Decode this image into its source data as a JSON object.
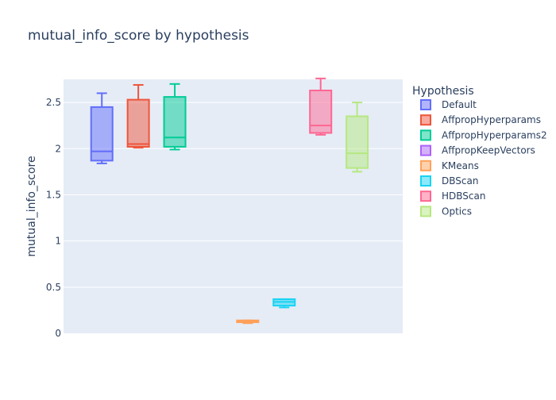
{
  "chart_data": {
    "type": "box",
    "title": "mutual_info_score by hypothesis",
    "xlabel": "",
    "ylabel": "mutual_info_score",
    "ylim": [
      0,
      2.75
    ],
    "yticks": [
      0,
      0.5,
      1,
      1.5,
      2,
      2.5
    ],
    "ytick_labels": [
      "0",
      "0.5",
      "1",
      "1.5",
      "2",
      "2.5"
    ],
    "grid": true,
    "legend": {
      "title": "Hypothesis",
      "placement": "right"
    },
    "series": [
      {
        "name": "Default",
        "color": "#636efa",
        "min": 1.84,
        "q1": 1.87,
        "median": 1.97,
        "q3": 2.45,
        "max": 2.6
      },
      {
        "name": "AffpropHyperparams",
        "color": "#ef553b",
        "min": 2.01,
        "q1": 2.02,
        "median": 2.05,
        "q3": 2.53,
        "max": 2.69
      },
      {
        "name": "AffpropHyperparams2",
        "color": "#00cc96",
        "min": 1.99,
        "q1": 2.02,
        "median": 2.12,
        "q3": 2.56,
        "max": 2.7
      },
      {
        "name": "AffpropKeepVectors",
        "color": "#ab63fa",
        "min": null,
        "q1": null,
        "median": null,
        "q3": null,
        "max": null
      },
      {
        "name": "KMeans",
        "color": "#ffa15a",
        "min": 0.11,
        "q1": 0.12,
        "median": 0.13,
        "q3": 0.14,
        "max": 0.14
      },
      {
        "name": "DBScan",
        "color": "#19d3f3",
        "min": 0.28,
        "q1": 0.3,
        "median": 0.34,
        "q3": 0.37,
        "max": 0.37
      },
      {
        "name": "HDBScan",
        "color": "#ff6692",
        "min": 2.15,
        "q1": 2.17,
        "median": 2.25,
        "q3": 2.63,
        "max": 2.76
      },
      {
        "name": "Optics",
        "color": "#b6e880",
        "min": 1.75,
        "q1": 1.79,
        "median": 1.95,
        "q3": 2.35,
        "max": 2.5
      }
    ]
  }
}
